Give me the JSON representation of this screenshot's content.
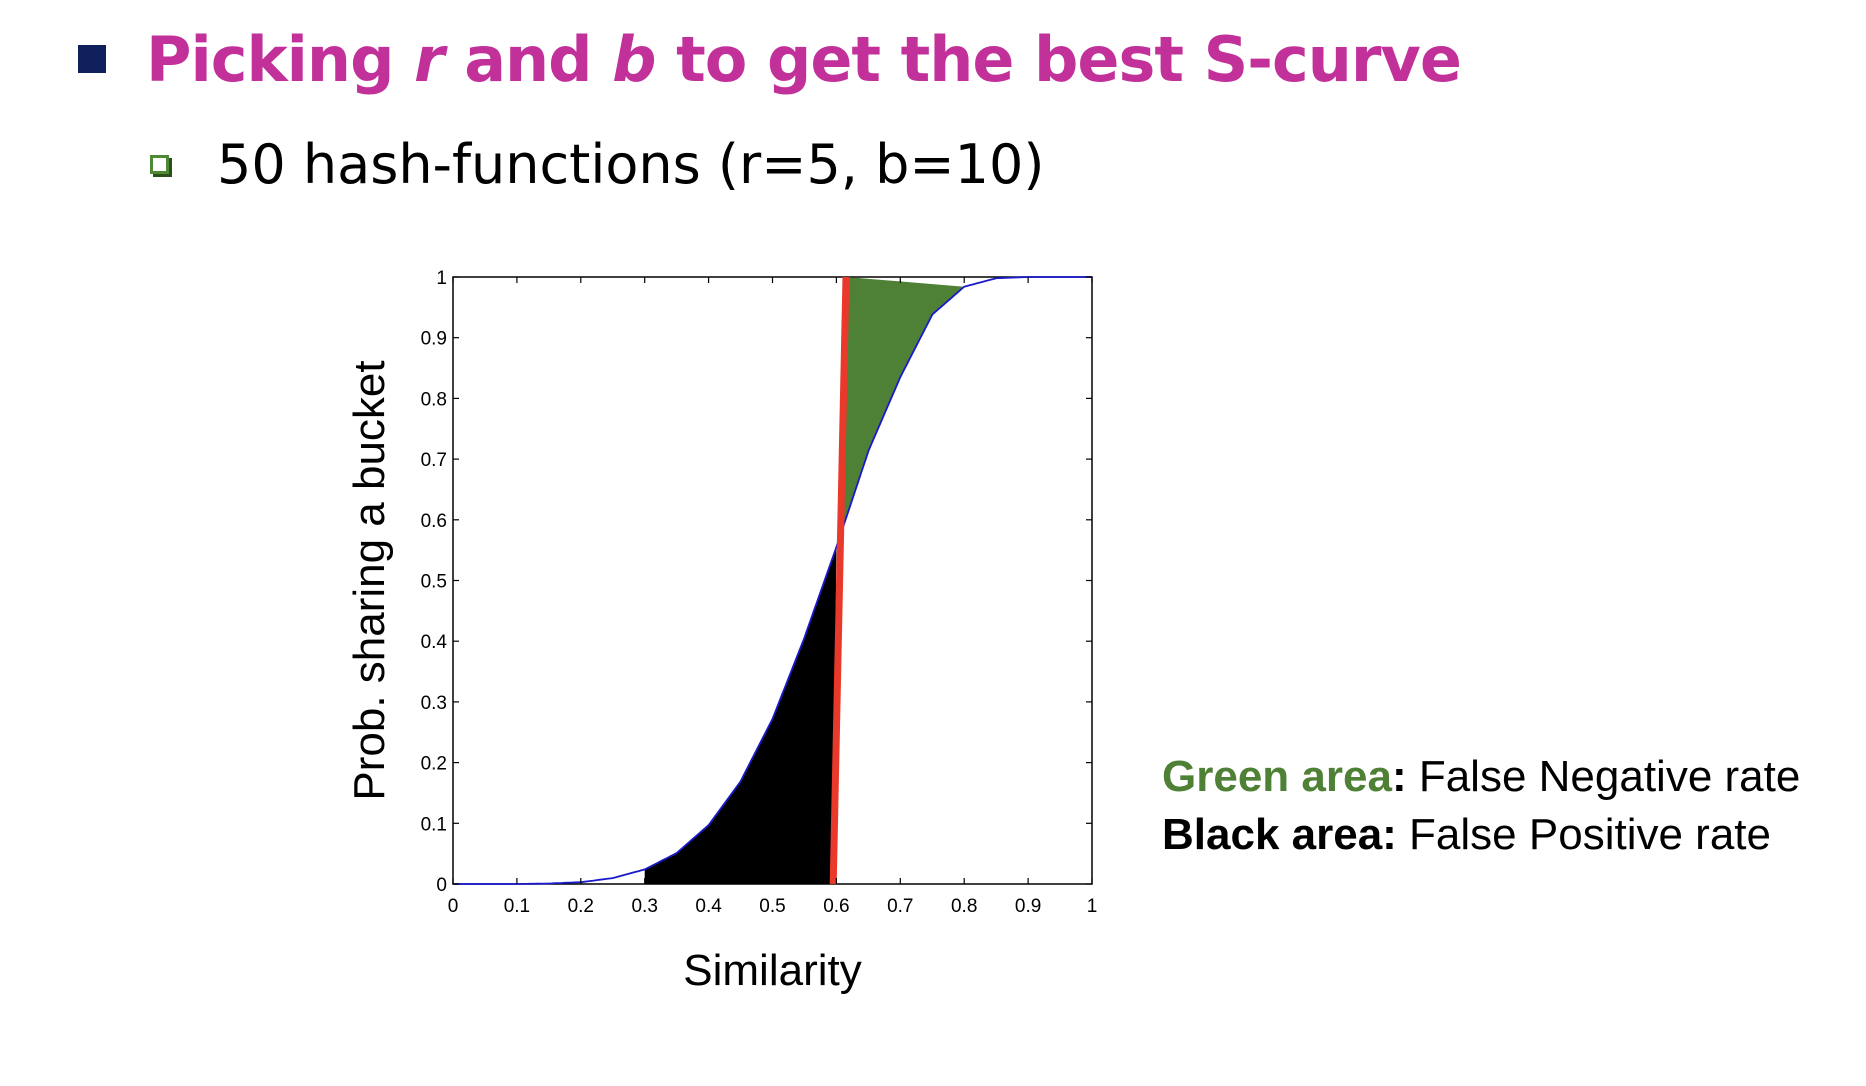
{
  "slide": {
    "title_pre": "Picking ",
    "title_r": "r",
    "title_mid": " and ",
    "title_b": "b",
    "title_post": " to get the best S-curve",
    "subtitle": "50 hash-functions (r=5, b=10)"
  },
  "legend": {
    "green_label": "Green area",
    "green_colon": ":",
    "green_text": " False Negative rate",
    "black_label": "Black area:",
    "black_text": " False Positive rate"
  },
  "colors": {
    "title": "#c2319a",
    "curve": "#1a1acc",
    "threshold": "#e8392a",
    "false_negative_area": "#4e8035",
    "false_positive_area": "#000000"
  },
  "chart_data": {
    "type": "line",
    "xlabel": "Similarity",
    "ylabel": "Prob. sharing a bucket",
    "xlim": [
      0,
      1
    ],
    "ylim": [
      0,
      1
    ],
    "x_ticks": [
      "0",
      "0.1",
      "0.2",
      "0.3",
      "0.4",
      "0.5",
      "0.6",
      "0.7",
      "0.8",
      "0.9",
      "1"
    ],
    "y_ticks": [
      "0",
      "0.1",
      "0.2",
      "0.3",
      "0.4",
      "0.5",
      "0.6",
      "0.7",
      "0.8",
      "0.9",
      "1"
    ],
    "series": [
      {
        "x": [
          0,
          0.05,
          0.1,
          0.15,
          0.2,
          0.25,
          0.3,
          0.35,
          0.4,
          0.45,
          0.5,
          0.55,
          0.6,
          0.65,
          0.7,
          0.75,
          0.8,
          0.85,
          0.9,
          0.95,
          1
        ],
        "values": [
          0,
          0,
          0,
          0.0008,
          0.003,
          0.0097,
          0.024,
          0.051,
          0.097,
          0.169,
          0.272,
          0.406,
          0.555,
          0.713,
          0.835,
          0.938,
          0.984,
          0.998,
          1,
          1,
          1
        ]
      }
    ],
    "threshold_line": {
      "x_start": 0.595,
      "x_end": 0.615,
      "y_start": 0,
      "y_end": 1
    },
    "shaded_regions": [
      {
        "area": "false_positive",
        "x_from": 0.3,
        "x_to": 0.6
      },
      {
        "area": "false_negative",
        "x_from": 0.61,
        "x_to": 0.8
      }
    ]
  }
}
